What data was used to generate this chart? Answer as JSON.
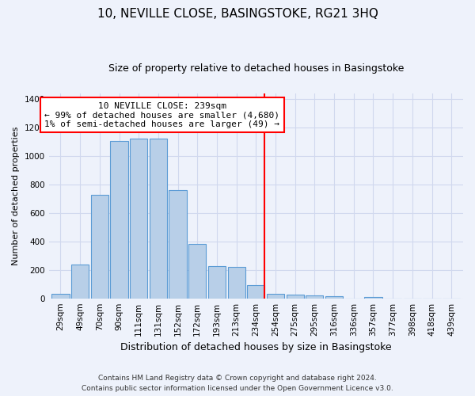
{
  "title": "10, NEVILLE CLOSE, BASINGSTOKE, RG21 3HQ",
  "subtitle": "Size of property relative to detached houses in Basingstoke",
  "xlabel": "Distribution of detached houses by size in Basingstoke",
  "ylabel": "Number of detached properties",
  "footnote1": "Contains HM Land Registry data © Crown copyright and database right 2024.",
  "footnote2": "Contains public sector information licensed under the Open Government Licence v3.0.",
  "bar_labels": [
    "29sqm",
    "49sqm",
    "70sqm",
    "90sqm",
    "111sqm",
    "131sqm",
    "152sqm",
    "172sqm",
    "193sqm",
    "213sqm",
    "234sqm",
    "254sqm",
    "275sqm",
    "295sqm",
    "316sqm",
    "336sqm",
    "357sqm",
    "377sqm",
    "398sqm",
    "418sqm",
    "439sqm"
  ],
  "bar_values": [
    30,
    235,
    725,
    1105,
    1120,
    1120,
    760,
    380,
    225,
    220,
    90,
    30,
    25,
    20,
    13,
    0,
    10,
    0,
    0,
    0,
    0
  ],
  "bar_color": "#b8cfe8",
  "bar_edge_color": "#5b9bd5",
  "vline_color": "red",
  "annotation_text": "10 NEVILLE CLOSE: 239sqm\n← 99% of detached houses are smaller (4,680)\n1% of semi-detached houses are larger (49) →",
  "ylim": [
    0,
    1440
  ],
  "yticks": [
    0,
    200,
    400,
    600,
    800,
    1000,
    1200,
    1400
  ],
  "background_color": "#eef2fb",
  "grid_color": "#d0d8ee",
  "title_fontsize": 11,
  "subtitle_fontsize": 9,
  "tick_fontsize": 7.5,
  "annotation_fontsize": 8,
  "ylabel_fontsize": 8,
  "xlabel_fontsize": 9,
  "footnote_fontsize": 6.5
}
